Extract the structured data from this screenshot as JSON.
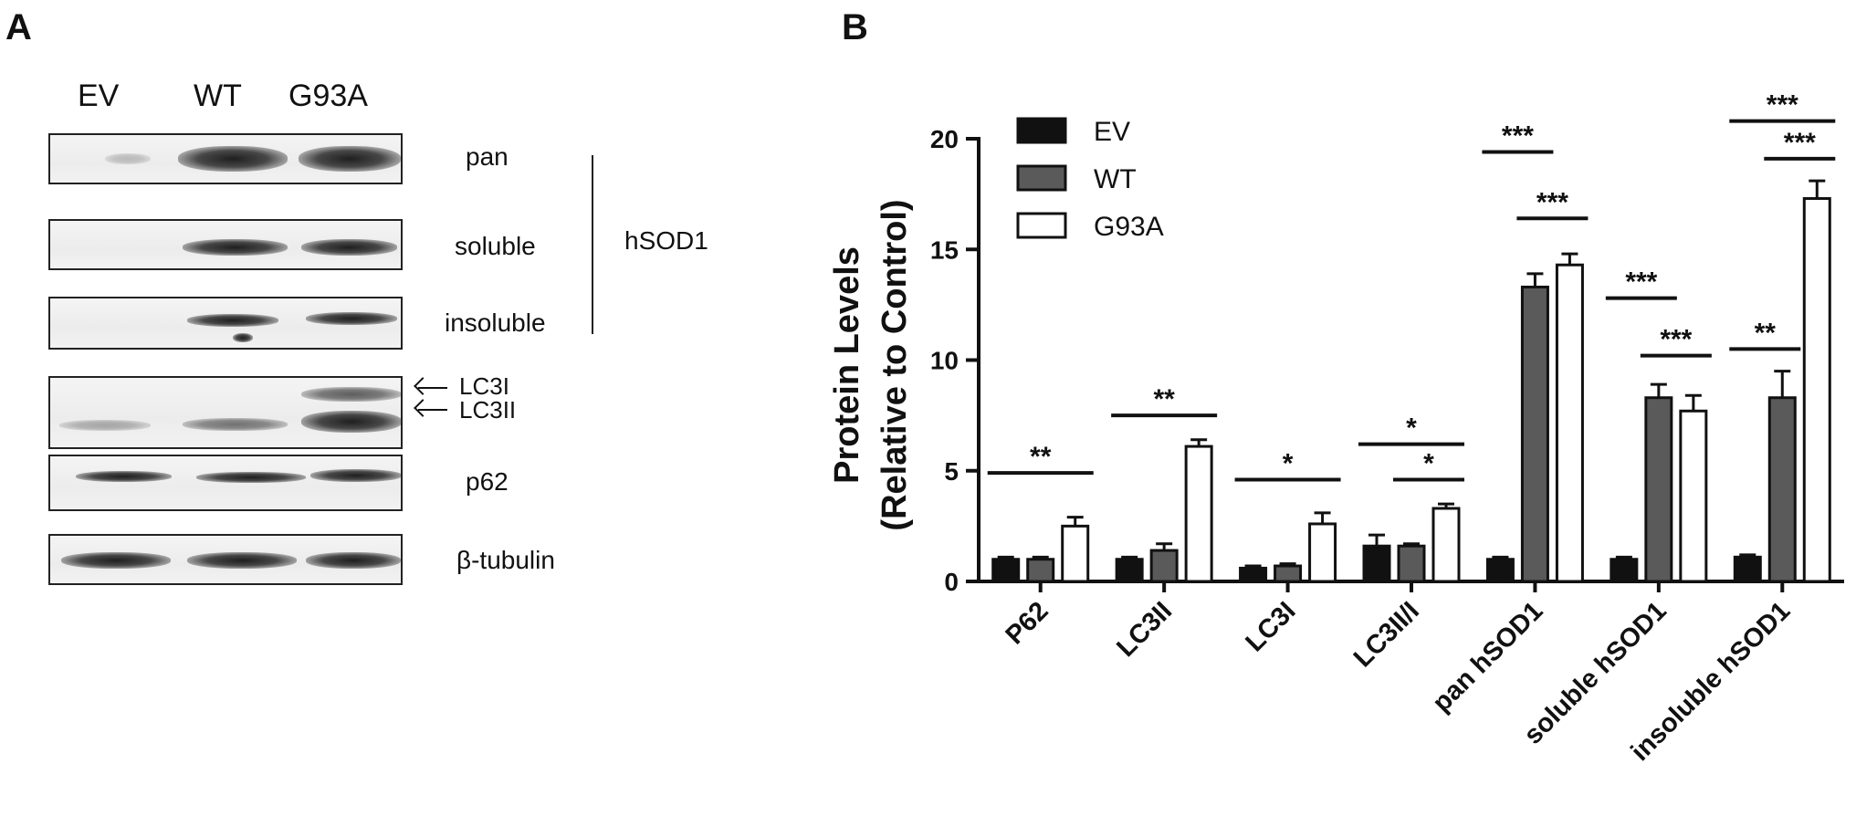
{
  "panel_a": {
    "label": "A",
    "lanes": [
      "EV",
      "WT",
      "G93A"
    ],
    "blots": [
      {
        "label": "pan"
      },
      {
        "label": "soluble"
      },
      {
        "label": "insoluble"
      },
      {
        "label": ""
      },
      {
        "label": "p62"
      },
      {
        "label": "β-tubulin"
      }
    ],
    "group_label": "hSOD1",
    "arrows": [
      "LC3I",
      "LC3II"
    ]
  },
  "panel_b": {
    "label": "B"
  },
  "chart_data": {
    "type": "bar",
    "ylabel_line1": "Protein Levels",
    "ylabel_line2": "(Relative to Control)",
    "ylim": [
      0,
      20
    ],
    "yticks": [
      "0",
      "5",
      "10",
      "15",
      "20"
    ],
    "legend_placement": "top-left",
    "categories": [
      "P62",
      "LC3II",
      "LC3I",
      "LC3II/I",
      "pan hSOD1",
      "soluble hSOD1",
      "insoluble hSOD1"
    ],
    "series": [
      {
        "name": "EV",
        "color": "#111111",
        "values": [
          1.0,
          1.0,
          0.6,
          1.6,
          1.0,
          1.0,
          1.1
        ],
        "errors": [
          0.1,
          0.1,
          0.1,
          0.5,
          0.1,
          0.1,
          0.1
        ]
      },
      {
        "name": "WT",
        "color": "#5a5a5a",
        "values": [
          1.0,
          1.4,
          0.7,
          1.6,
          13.3,
          8.3,
          8.3
        ],
        "errors": [
          0.1,
          0.3,
          0.1,
          0.1,
          0.6,
          0.6,
          1.2
        ]
      },
      {
        "name": "G93A",
        "color": "#ffffff",
        "values": [
          2.5,
          6.1,
          2.6,
          3.3,
          14.3,
          7.7,
          17.3
        ],
        "errors": [
          0.4,
          0.3,
          0.5,
          0.2,
          0.5,
          0.7,
          0.8
        ]
      }
    ],
    "significance": [
      {
        "category": 0,
        "from": 0,
        "to": 2,
        "y": 4.9,
        "label": "**"
      },
      {
        "category": 1,
        "from": 0,
        "to": 2,
        "y": 7.5,
        "label": "**"
      },
      {
        "category": 2,
        "from": 0,
        "to": 2,
        "y": 4.6,
        "label": "*"
      },
      {
        "category": 3,
        "from": 0,
        "to": 2,
        "y": 6.2,
        "label": "*"
      },
      {
        "category": 3,
        "from": 1,
        "to": 2,
        "y": 4.6,
        "label": "*"
      },
      {
        "category": 4,
        "from": 0,
        "to": 1,
        "y": 19.4,
        "label": "***"
      },
      {
        "category": 4,
        "from": 1,
        "to": 2,
        "y": 16.4,
        "label": "***"
      },
      {
        "category": 5,
        "from": 0,
        "to": 1,
        "y": 12.8,
        "label": "***"
      },
      {
        "category": 5,
        "from": 1,
        "to": 2,
        "y": 10.2,
        "label": "***"
      },
      {
        "category": 6,
        "from": 0,
        "to": 1,
        "y": 10.5,
        "label": "**"
      },
      {
        "category": 6,
        "from": 1,
        "to": 2,
        "y": 19.1,
        "label": "***"
      },
      {
        "category": 6,
        "from": 0,
        "to": 2,
        "y": 20.8,
        "label": "***"
      }
    ]
  }
}
